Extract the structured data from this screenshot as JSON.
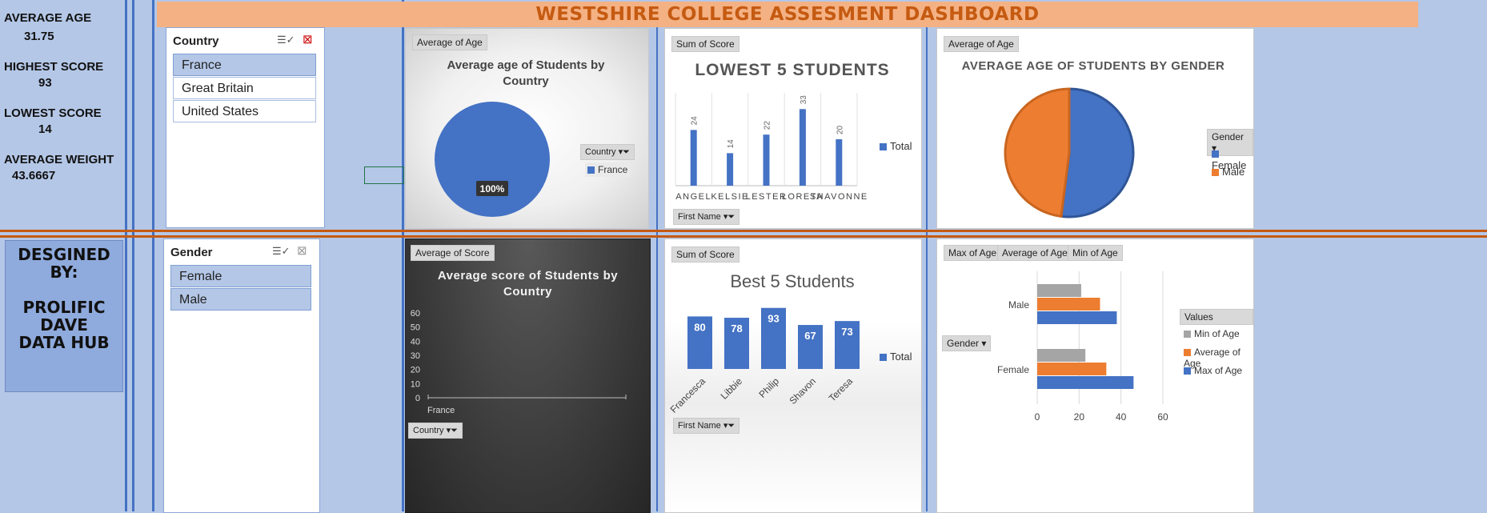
{
  "colors": {
    "blue": "#4472c4",
    "orange": "#ed7d31",
    "gray": "#a5a5a5",
    "banner": "#f4b183",
    "banner_text": "#c55a11"
  },
  "kpis": [
    {
      "label": "AVERAGE AGE",
      "value": "31.75"
    },
    {
      "label": "HIGHEST SCORE",
      "value": "93"
    },
    {
      "label": "LOWEST SCORE",
      "value": "14"
    },
    {
      "label": "AVERAGE WEIGHT",
      "value": "43.6667"
    }
  ],
  "designed_by": [
    "DESGINED",
    "BY:",
    "",
    "PROLIFIC",
    "DAVE",
    "DATA HUB"
  ],
  "title": "WESTSHIRE COLLEGE ASSESMENT DASHBOARD",
  "slicers": {
    "country": {
      "title": "Country",
      "items": [
        "France",
        "Great Britain",
        "United States"
      ],
      "selected": "France",
      "icons": [
        "multi-select-icon",
        "clear-filter-icon"
      ]
    },
    "gender": {
      "title": "Gender",
      "items": [
        "Female",
        "Male"
      ],
      "selected": [
        "Female",
        "Male"
      ],
      "icons": [
        "multi-select-icon",
        "clear-filter-icon"
      ]
    }
  },
  "charts": {
    "age_country": {
      "tag": "Average of Age",
      "legend_tag": "Country",
      "legend": [
        "France"
      ]
    },
    "lowest5": {
      "tag": "Sum of Score",
      "axis_tag": "First Name",
      "legend": [
        "Total"
      ]
    },
    "age_gender": {
      "tag": "Average of Age",
      "legend_tag": "Gender",
      "legend": [
        "Female",
        "Male"
      ]
    },
    "score_country": {
      "tag": "Average of Score",
      "axis_tag": "Country"
    },
    "best5": {
      "tag": "Sum of Score",
      "axis_tag": "First Name",
      "legend": [
        "Total"
      ]
    },
    "age_stats": {
      "tags": [
        "Max of Age",
        "Average of Age",
        "Min of Age"
      ],
      "axis_tag": "Gender",
      "legend_title": "Values",
      "legend": [
        "Min of Age",
        "Average of Age",
        "Max of Age"
      ]
    }
  },
  "chart_data": [
    {
      "type": "pie",
      "title": "Average age of Students by Country",
      "categories": [
        "France"
      ],
      "values": [
        100
      ],
      "data_labels": [
        "100%"
      ]
    },
    {
      "type": "bar",
      "title": "LOWEST 5 STUDENTS",
      "categories": [
        "ANGEL",
        "KELSIE",
        "LESTER",
        "LORETA",
        "SHAVONNE"
      ],
      "values": [
        24,
        14,
        22,
        33,
        20
      ]
    },
    {
      "type": "pie",
      "title": "AVERAGE AGE OF STUDENTS BY GENDER",
      "categories": [
        "Female",
        "Male"
      ],
      "values": [
        52,
        48
      ]
    },
    {
      "type": "bar",
      "title": "Average score of Students by Country",
      "categories": [
        "France"
      ],
      "values": [
        0
      ],
      "ylim": [
        0,
        60
      ],
      "yticks": [
        "0",
        "10",
        "20",
        "30",
        "40",
        "50",
        "60"
      ]
    },
    {
      "type": "bar",
      "title": "Best 5 Students",
      "categories": [
        "Francesca",
        "Libbie",
        "Philip",
        "Shavon",
        "Teresa"
      ],
      "values": [
        80,
        78,
        93,
        67,
        73
      ]
    },
    {
      "type": "bar",
      "orientation": "horizontal",
      "title": "",
      "categories": [
        "Female",
        "Male"
      ],
      "series": [
        {
          "name": "Min of Age",
          "values": [
            23,
            21
          ]
        },
        {
          "name": "Average of Age",
          "values": [
            33,
            30
          ]
        },
        {
          "name": "Max of Age",
          "values": [
            46,
            38
          ]
        }
      ],
      "xlim": [
        0,
        60
      ],
      "xticks": [
        "0",
        "20",
        "40",
        "60"
      ]
    }
  ]
}
